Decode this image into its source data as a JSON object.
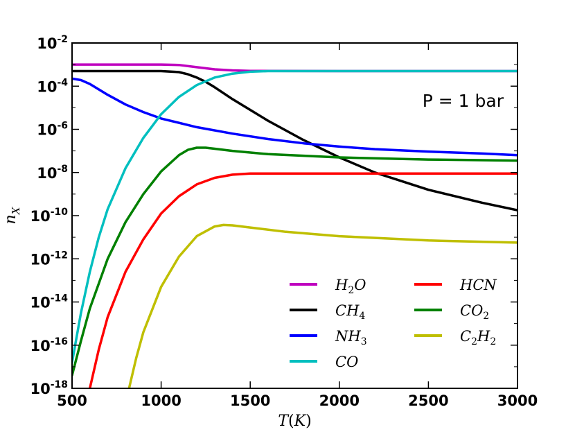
{
  "chart_data": {
    "type": "line",
    "xlabel": "T(K)",
    "ylabel": "n_X",
    "xlim": [
      500,
      3000
    ],
    "ylim_log10": [
      -18,
      -2
    ],
    "y_scale": "log",
    "x_ticks": [
      500,
      1000,
      1500,
      2000,
      2500,
      3000
    ],
    "x_tick_labels": [
      "500",
      "1000",
      "1500",
      "2000",
      "2500",
      "3000"
    ],
    "y_ticks_log10": [
      -18,
      -16,
      -14,
      -12,
      -10,
      -8,
      -6,
      -4,
      -2
    ],
    "y_tick_labels": [
      {
        "base": "10",
        "exp": "-18"
      },
      {
        "base": "10",
        "exp": "-16"
      },
      {
        "base": "10",
        "exp": "-14"
      },
      {
        "base": "10",
        "exp": "-12"
      },
      {
        "base": "10",
        "exp": "-10"
      },
      {
        "base": "10",
        "exp": "-8"
      },
      {
        "base": "10",
        "exp": "-6"
      },
      {
        "base": "10",
        "exp": "-4"
      },
      {
        "base": "10",
        "exp": "-2"
      }
    ],
    "annotation": "P = 1 bar",
    "legend_position": "lower-right",
    "series": [
      {
        "name": "H2O",
        "label_main": "H",
        "label_sub": "2",
        "label_tail": "O",
        "color": "#bf00bf",
        "x": [
          500,
          800,
          1000,
          1100,
          1200,
          1300,
          1400,
          1500,
          2000,
          2500,
          3000
        ],
        "y_log10": [
          -3.0,
          -3.0,
          -3.0,
          -3.02,
          -3.12,
          -3.22,
          -3.27,
          -3.29,
          -3.3,
          -3.3,
          -3.3
        ]
      },
      {
        "name": "CH4",
        "label_main": "CH",
        "label_sub": "4",
        "label_tail": "",
        "color": "#000000",
        "x": [
          500,
          800,
          1000,
          1100,
          1150,
          1200,
          1250,
          1300,
          1400,
          1500,
          1600,
          1800,
          2000,
          2200,
          2500,
          2800,
          3000
        ],
        "y_log10": [
          -3.3,
          -3.3,
          -3.3,
          -3.35,
          -3.45,
          -3.6,
          -3.8,
          -4.05,
          -4.6,
          -5.1,
          -5.6,
          -6.5,
          -7.3,
          -8.0,
          -8.8,
          -9.4,
          -9.75
        ]
      },
      {
        "name": "NH3",
        "label_main": "NH",
        "label_sub": "3",
        "label_tail": "",
        "color": "#0000ff",
        "x": [
          500,
          550,
          600,
          700,
          800,
          900,
          1000,
          1200,
          1400,
          1600,
          1800,
          2000,
          2200,
          2500,
          2800,
          3000
        ],
        "y_log10": [
          -3.65,
          -3.72,
          -3.9,
          -4.4,
          -4.85,
          -5.2,
          -5.5,
          -5.9,
          -6.2,
          -6.45,
          -6.65,
          -6.8,
          -6.92,
          -7.03,
          -7.12,
          -7.2
        ]
      },
      {
        "name": "CO",
        "label_main": "CO",
        "label_sub": "",
        "label_tail": "",
        "color": "#00bfbf",
        "x": [
          500,
          550,
          600,
          650,
          700,
          800,
          900,
          1000,
          1100,
          1200,
          1300,
          1400,
          1500,
          1600,
          2000,
          2500,
          3000
        ],
        "y_log10": [
          -16.8,
          -14.5,
          -12.6,
          -11.0,
          -9.7,
          -7.8,
          -6.4,
          -5.3,
          -4.5,
          -3.95,
          -3.6,
          -3.42,
          -3.33,
          -3.3,
          -3.3,
          -3.3,
          -3.3
        ]
      },
      {
        "name": "HCN",
        "label_main": "HCN",
        "label_sub": "",
        "label_tail": "",
        "color": "#ff0000",
        "x": [
          600,
          650,
          700,
          800,
          900,
          1000,
          1100,
          1200,
          1300,
          1400,
          1500,
          2000,
          2500,
          3000
        ],
        "y_log10": [
          -18.0,
          -16.2,
          -14.7,
          -12.6,
          -11.1,
          -9.9,
          -9.1,
          -8.55,
          -8.25,
          -8.1,
          -8.05,
          -8.05,
          -8.05,
          -8.05
        ]
      },
      {
        "name": "CO2",
        "label_main": "CO",
        "label_sub": "2",
        "label_tail": "",
        "color": "#008000",
        "x": [
          500,
          550,
          600,
          700,
          800,
          900,
          1000,
          1100,
          1150,
          1200,
          1250,
          1300,
          1400,
          1600,
          2000,
          2500,
          3000
        ],
        "y_log10": [
          -17.4,
          -15.8,
          -14.3,
          -12.0,
          -10.3,
          -9.0,
          -7.95,
          -7.2,
          -6.95,
          -6.85,
          -6.85,
          -6.9,
          -7.0,
          -7.15,
          -7.3,
          -7.4,
          -7.45
        ]
      },
      {
        "name": "C2H2",
        "label_main": "C",
        "label_sub": "2",
        "label_tail": "H₂",
        "color": "#bfbf00",
        "x": [
          820,
          860,
          900,
          1000,
          1100,
          1200,
          1300,
          1350,
          1400,
          1500,
          1700,
          2000,
          2500,
          3000
        ],
        "y_log10": [
          -18.0,
          -16.6,
          -15.4,
          -13.3,
          -11.9,
          -10.95,
          -10.5,
          -10.43,
          -10.45,
          -10.55,
          -10.75,
          -10.95,
          -11.15,
          -11.25
        ]
      }
    ],
    "legend_columns": [
      [
        "H2O",
        "CH4",
        "NH3",
        "CO"
      ],
      [
        "HCN",
        "CO2",
        "C2H2"
      ]
    ]
  }
}
